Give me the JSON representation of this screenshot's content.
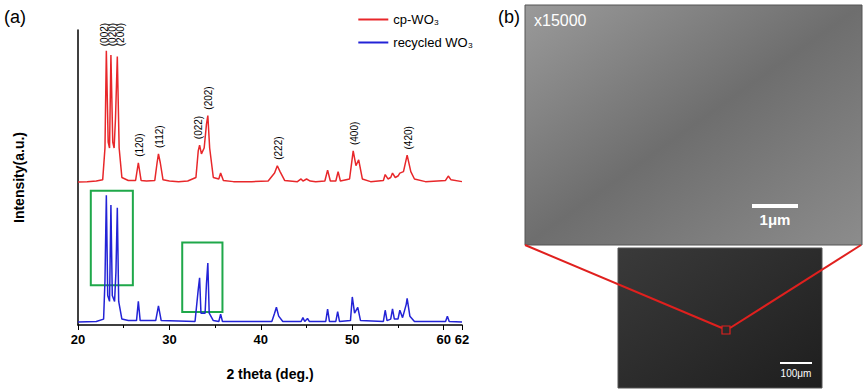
{
  "chart_data": {
    "type": "line",
    "panel_label": "(a)",
    "x_label": "2 theta (deg.)",
    "y_label": "Intensity(a.u.)",
    "xlim": [
      20,
      62
    ],
    "xticks": [
      20,
      30,
      40,
      50,
      60
    ],
    "ylim": [
      0,
      100
    ],
    "tick_labels": "x",
    "grid": false,
    "legend": "upper right",
    "series": [
      {
        "name": "cp-WO₃",
        "color": "#e8272a",
        "x": [
          20,
          21,
          22,
          22.7,
          22.95,
          23.1,
          23.3,
          23.45,
          23.6,
          23.8,
          23.95,
          24.1,
          24.3,
          24.5,
          24.8,
          25.5,
          26.3,
          26.6,
          26.9,
          27.5,
          28.4,
          28.65,
          28.8,
          29.0,
          29.3,
          30,
          31,
          32,
          32.9,
          33.15,
          33.3,
          33.5,
          33.8,
          34.05,
          34.2,
          34.4,
          34.8,
          35.4,
          35.6,
          35.9,
          37,
          39,
          40.8,
          41.5,
          41.8,
          42.1,
          42.6,
          44,
          44.4,
          44.6,
          45,
          45.4,
          46,
          47,
          47.3,
          47.6,
          48.2,
          48.45,
          48.7,
          49.7,
          50.1,
          50.4,
          50.7,
          51.1,
          52,
          53.4,
          53.6,
          53.9,
          54.2,
          54.4,
          54.7,
          55.0,
          55.2,
          55.6,
          56.0,
          56.4,
          56.8,
          58,
          60.2,
          60.5,
          60.8,
          62
        ],
        "values": [
          48.5,
          48.6,
          48.8,
          49.2,
          60,
          93,
          62,
          60,
          91.5,
          62,
          60,
          70,
          91,
          60,
          50,
          49,
          49,
          55,
          49,
          48.8,
          49,
          55,
          58,
          55,
          49.2,
          48.8,
          48.6,
          48.8,
          50,
          59,
          61,
          58,
          60,
          68,
          71,
          60,
          50,
          49.5,
          51.5,
          49,
          48.6,
          48.6,
          48.8,
          51.5,
          54,
          52,
          49,
          48.6,
          49.5,
          48.8,
          49.5,
          48.8,
          48.6,
          48.8,
          52.5,
          48.8,
          48.8,
          52,
          48.8,
          49.5,
          59,
          54,
          56,
          49.5,
          48.6,
          49,
          51,
          49.5,
          50,
          51.5,
          50,
          50.5,
          51.5,
          52,
          57.6,
          52,
          49.5,
          48.6,
          49,
          50.5,
          49.2,
          48.6
        ]
      },
      {
        "name": "recycled WO₃",
        "color": "#2323d6",
        "x": [
          20,
          22,
          22.8,
          22.95,
          23.1,
          23.25,
          23.45,
          23.6,
          23.75,
          24.0,
          24.15,
          24.3,
          24.45,
          24.8,
          25.5,
          26.4,
          26.6,
          26.8,
          28.5,
          28.8,
          29.1,
          32.8,
          33.15,
          33.3,
          33.45,
          33.9,
          34.05,
          34.2,
          34.35,
          34.8,
          35.4,
          35.6,
          35.8,
          41.2,
          41.5,
          41.7,
          41.95,
          42.4,
          44.4,
          44.6,
          44.8,
          45.1,
          45.3,
          47.1,
          47.3,
          47.5,
          48.2,
          48.4,
          48.6,
          49.8,
          50.0,
          50.25,
          50.6,
          50.9,
          53.4,
          53.6,
          53.8,
          54.2,
          54.4,
          54.6,
          55.0,
          55.2,
          55.5,
          55.9,
          56.0,
          56.3,
          56.8,
          60.2,
          60.4,
          60.6,
          62
        ],
        "values": [
          1,
          1.2,
          2,
          15,
          44,
          10,
          8,
          40.7,
          10,
          8,
          18,
          39.7,
          8,
          2,
          1.5,
          1.5,
          8,
          1.5,
          1.5,
          6.5,
          1.5,
          1.2,
          12,
          16,
          4,
          4,
          14,
          21,
          4,
          1.5,
          1.2,
          3.7,
          1.2,
          1.2,
          4,
          6,
          3,
          1.2,
          1.2,
          2.5,
          1.2,
          2.2,
          1.2,
          1.2,
          5.4,
          1.2,
          1.2,
          4.5,
          1.2,
          1.5,
          9.5,
          4,
          6,
          1.5,
          1.2,
          5,
          1.5,
          2,
          5.5,
          2,
          2,
          5,
          2.5,
          7,
          9,
          3,
          1.2,
          1.2,
          3,
          1.2,
          1
        ],
        "highlight_boxes": [
          {
            "x": [
              21.4,
              26.0
            ],
            "y": [
              13.5,
              45.5
            ]
          },
          {
            "x": [
              31.4,
              35.8
            ],
            "y": [
              4.4,
              28
            ]
          }
        ]
      }
    ],
    "annotations": [
      {
        "text": "(002)",
        "x": 22.9,
        "y": 94.5
      },
      {
        "text": "(020)",
        "x": 23.8,
        "y": 94.5
      },
      {
        "text": "(200)",
        "x": 24.7,
        "y": 94.5
      },
      {
        "text": "(120)",
        "x": 26.7,
        "y": 57
      },
      {
        "text": "(112)",
        "x": 28.9,
        "y": 60
      },
      {
        "text": "(022)",
        "x": 33.2,
        "y": 63
      },
      {
        "text": "(202)",
        "x": 34.25,
        "y": 73
      },
      {
        "text": "(222)",
        "x": 41.9,
        "y": 56
      },
      {
        "text": "(400)",
        "x": 50.2,
        "y": 61
      },
      {
        "text": "(420)",
        "x": 56.1,
        "y": 59.5
      }
    ]
  },
  "sem_images": {
    "panel_label": "(b)",
    "main": {
      "magnification": "x15000",
      "scale_bar": "1μm"
    },
    "inset": {
      "scale_bar": "100μm"
    }
  }
}
